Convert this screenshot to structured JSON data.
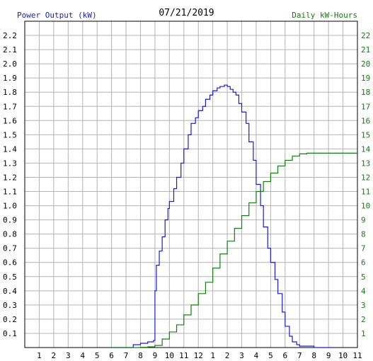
{
  "chart_data": {
    "type": "line",
    "title": "07/21/2019",
    "left_axis_label": "Power Output (kW)",
    "right_axis_label": "Daily kW-Hours",
    "x_tick_labels": [
      "1",
      "2",
      "3",
      "4",
      "5",
      "6",
      "7",
      "8",
      "9",
      "10",
      "11",
      "12",
      "1",
      "2",
      "3",
      "4",
      "5",
      "6",
      "7",
      "8",
      "9",
      "10",
      "11"
    ],
    "left_ticks": [
      "0.1",
      "0.2",
      "0.3",
      "0.4",
      "0.5",
      "0.6",
      "0.7",
      "0.8",
      "0.9",
      "1.0",
      "1.1",
      "1.2",
      "1.3",
      "1.4",
      "1.5",
      "1.6",
      "1.7",
      "1.8",
      "1.9",
      "2.0",
      "2.1",
      "2.2"
    ],
    "right_ticks": [
      "1",
      "2",
      "3",
      "4",
      "5",
      "6",
      "7",
      "8",
      "9",
      "10",
      "11",
      "12",
      "13",
      "14",
      "15",
      "16",
      "17",
      "18",
      "19",
      "20",
      "21",
      "22"
    ],
    "xlim": [
      0,
      23
    ],
    "ylim_left": [
      0,
      2.3
    ],
    "ylim_right": [
      0,
      23
    ],
    "grid": true,
    "series": [
      {
        "name": "Power Output (kW)",
        "axis": "left",
        "color": "#1a1adb",
        "x": [
          6.0,
          6.5,
          7.0,
          7.5,
          8.0,
          8.5,
          8.9,
          9.0,
          9.1,
          9.3,
          9.5,
          9.7,
          9.9,
          10.0,
          10.3,
          10.5,
          10.8,
          11.0,
          11.3,
          11.5,
          11.8,
          12.0,
          12.3,
          12.5,
          12.8,
          13.0,
          13.3,
          13.5,
          13.8,
          14.0,
          14.2,
          14.4,
          14.6,
          14.8,
          15.0,
          15.3,
          15.5,
          15.8,
          16.0,
          16.3,
          16.5,
          16.8,
          17.0,
          17.3,
          17.5,
          17.8,
          18.0,
          18.3,
          18.5,
          18.8,
          19.0,
          19.3,
          19.5,
          19.8,
          20.0,
          20.5,
          21.0,
          21.5
        ],
        "y": [
          0.0,
          0.0,
          0.0,
          0.02,
          0.03,
          0.04,
          0.05,
          0.4,
          0.58,
          0.68,
          0.78,
          0.9,
          0.98,
          1.03,
          1.12,
          1.2,
          1.3,
          1.4,
          1.5,
          1.58,
          1.62,
          1.67,
          1.7,
          1.75,
          1.78,
          1.81,
          1.83,
          1.84,
          1.85,
          1.84,
          1.82,
          1.8,
          1.78,
          1.72,
          1.66,
          1.58,
          1.45,
          1.32,
          1.15,
          1.0,
          0.85,
          0.7,
          0.6,
          0.48,
          0.38,
          0.25,
          0.15,
          0.08,
          0.04,
          0.02,
          0.01,
          0.01,
          0.01,
          0.01,
          0.0,
          0.0,
          0.0,
          0.0
        ]
      },
      {
        "name": "Daily kW-Hours",
        "axis": "right",
        "color": "#108010",
        "x": [
          6.0,
          7.0,
          8.0,
          8.5,
          9.0,
          9.5,
          10.0,
          10.5,
          11.0,
          11.5,
          12.0,
          12.5,
          13.0,
          13.5,
          14.0,
          14.5,
          15.0,
          15.5,
          16.0,
          16.5,
          17.0,
          17.5,
          18.0,
          18.5,
          19.0,
          19.5,
          20.0,
          20.5,
          21.0,
          22.0,
          23.0
        ],
        "y": [
          0.0,
          0.0,
          0.02,
          0.05,
          0.15,
          0.6,
          1.1,
          1.6,
          2.3,
          3.0,
          3.8,
          4.6,
          5.6,
          6.6,
          7.5,
          8.4,
          9.3,
          10.2,
          11.0,
          11.7,
          12.3,
          12.8,
          13.2,
          13.5,
          13.65,
          13.7,
          13.7,
          13.7,
          13.7,
          13.7,
          13.7
        ]
      }
    ]
  }
}
